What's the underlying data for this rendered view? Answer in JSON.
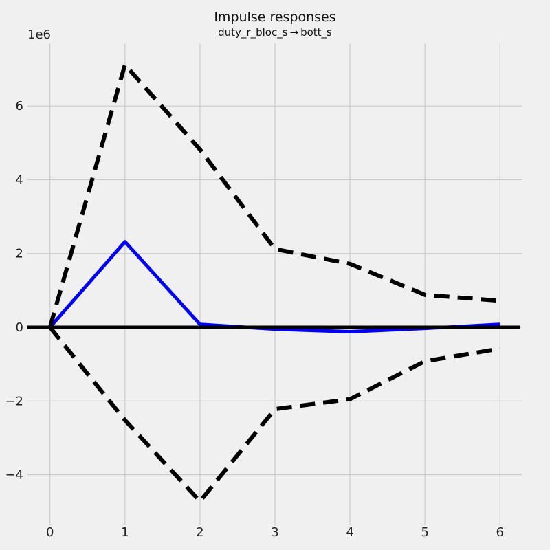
{
  "chart_data": {
    "type": "line",
    "title": "Impulse responses",
    "subtitle": "duty_r_bloc_s → bott_s",
    "y_offset_label": "1e6",
    "y_scale": 1000000,
    "x": [
      0,
      1,
      2,
      3,
      4,
      5,
      6
    ],
    "xlim": [
      -0.3,
      6.3
    ],
    "ylim": [
      -5.35,
      7.7
    ],
    "x_ticks": [
      0,
      1,
      2,
      3,
      4,
      5,
      6
    ],
    "y_ticks": [
      -4,
      -2,
      0,
      2,
      4,
      6
    ],
    "grid": true,
    "series": [
      {
        "role": "response",
        "color": "#0000ff",
        "style": "solid",
        "values": [
          0.0,
          2.32,
          0.08,
          -0.05,
          -0.12,
          -0.03,
          0.08
        ]
      },
      {
        "role": "upper-bound",
        "color": "#000000",
        "style": "dashed",
        "values": [
          0.0,
          7.12,
          4.82,
          2.12,
          1.72,
          0.88,
          0.72
        ]
      },
      {
        "role": "lower-bound",
        "color": "#000000",
        "style": "dashed",
        "values": [
          0.0,
          -2.52,
          -4.72,
          -2.22,
          -1.95,
          -0.92,
          -0.58
        ]
      }
    ],
    "zero_line": {
      "y": 0,
      "color": "#000000"
    }
  }
}
